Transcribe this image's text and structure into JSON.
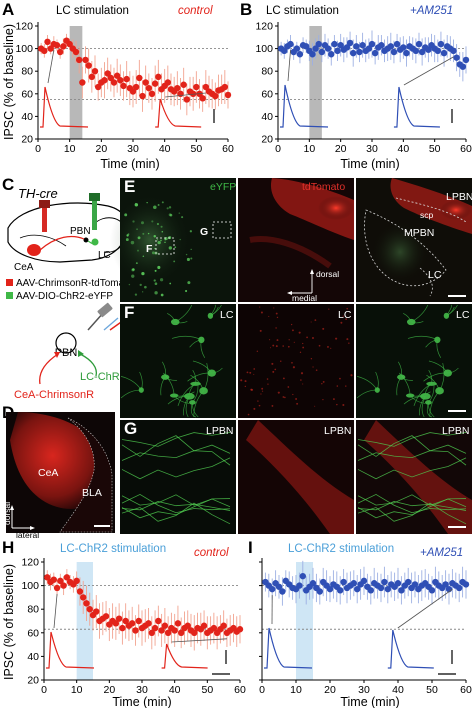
{
  "figure": {
    "colors": {
      "control": "#e2231a",
      "am251": "#2f4fb5",
      "stim_blue": "#4a9fd8",
      "stim_fill_blue": "#cfe6f5",
      "stim_fill_gray": "#b8b8b8",
      "eyfp": "#3fb847",
      "tdtomato": "#e0302a"
    },
    "panels": {
      "A": {
        "letter": "A",
        "stim_label": "LC stimulation",
        "condition_label": "control",
        "ylabel": "IPSC (% of baseline)",
        "xlabel": "Time (min)",
        "xticks": [
          "0",
          "10",
          "20",
          "30",
          "40",
          "50",
          "60"
        ],
        "yticks": [
          "20",
          "40",
          "60",
          "80",
          "100",
          "120"
        ]
      },
      "B": {
        "letter": "B",
        "stim_label": "LC stimulation",
        "condition_label": "+AM251",
        "xlabel": "Time (min)",
        "xticks": [
          "0",
          "10",
          "20",
          "30",
          "40",
          "50",
          "60"
        ],
        "yticks": [
          "20",
          "40",
          "60",
          "80",
          "100",
          "120"
        ]
      },
      "C": {
        "letter": "C",
        "genotype": "TH-cre",
        "legend": [
          "AAV-ChrimsonR-tdTomato",
          "AAV-DIO-ChR2-eYFP"
        ],
        "regions": [
          "CeA",
          "PBN",
          "LC"
        ],
        "circuit_center": "PBN",
        "left_input": "CeA-ChrimsonR",
        "right_input": "LC-ChR2"
      },
      "D": {
        "letter": "D",
        "labels": [
          "CeA",
          "BLA"
        ],
        "axis_dorsal": "dorsal",
        "axis_lateral": "lateral"
      },
      "E": {
        "letter": "E",
        "channel_1": "eYFP",
        "channel_2": "tdTomato",
        "inset_f": "F",
        "inset_g": "G",
        "merge_labels": [
          "LPBN",
          "scp",
          "MPBN",
          "LC"
        ],
        "axis_dorsal": "dorsal",
        "axis_medial": "medial"
      },
      "F": {
        "letter": "F",
        "region": "LC"
      },
      "G": {
        "letter": "G",
        "region": "LPBN"
      },
      "H": {
        "letter": "H",
        "stim_label": "LC-ChR2 stimulation",
        "condition_label": "control",
        "ylabel": "IPSC (% of baseline)",
        "xlabel": "Time (min)",
        "xticks": [
          "0",
          "10",
          "20",
          "30",
          "40",
          "50",
          "60"
        ],
        "yticks": [
          "20",
          "40",
          "60",
          "80",
          "100",
          "120"
        ]
      },
      "I": {
        "letter": "I",
        "stim_label": "LC-ChR2 stimulation",
        "condition_label": "+AM251",
        "xlabel": "Time (min)",
        "xticks": [
          "0",
          "10",
          "20",
          "30",
          "40",
          "50",
          "60"
        ],
        "yticks": [
          "20",
          "40",
          "60",
          "80",
          "100",
          "120"
        ]
      }
    }
  },
  "chart_data": [
    {
      "type": "scatter",
      "panel": "A",
      "xlabel": "Time (min)",
      "ylabel": "IPSC (% of baseline)",
      "xlim": [
        0,
        60
      ],
      "ylim": [
        20,
        120
      ],
      "stim_window": [
        10,
        14
      ],
      "reference_lines": [
        100,
        55
      ],
      "series": [
        {
          "x": [
            1,
            2,
            3,
            4,
            5,
            6,
            7,
            8,
            9,
            10,
            11,
            12,
            13,
            14,
            15,
            16,
            17,
            18,
            19,
            20,
            21,
            22,
            23,
            24,
            25,
            26,
            27,
            28,
            29,
            30,
            31,
            32,
            33,
            34,
            35,
            36,
            37,
            38,
            39,
            40,
            41,
            42,
            43,
            44,
            45,
            46,
            47,
            48,
            49,
            50,
            51,
            52,
            53,
            54,
            55,
            56,
            57,
            58,
            59,
            60
          ],
          "y": [
            100,
            98,
            106,
            100,
            104,
            103,
            97,
            102,
            107,
            104,
            100,
            97,
            90,
            70,
            90,
            85,
            75,
            80,
            66,
            70,
            72,
            78,
            74,
            70,
            76,
            72,
            67,
            73,
            65,
            62,
            66,
            74,
            58,
            70,
            65,
            60,
            69,
            75,
            64,
            67,
            70,
            64,
            62,
            65,
            60,
            68,
            55,
            62,
            60,
            66,
            60,
            56,
            66,
            62,
            60,
            58,
            63,
            64,
            66,
            59
          ],
          "err": [
            5,
            6,
            6,
            5,
            7,
            5,
            6,
            7,
            6,
            5,
            8,
            10,
            12,
            14,
            12,
            15,
            14,
            14,
            12,
            13,
            16,
            14,
            12,
            13,
            15,
            14,
            13,
            16,
            15,
            14,
            15,
            16,
            14,
            15,
            13,
            14,
            16,
            15,
            14,
            15,
            15,
            14,
            13,
            15,
            14,
            15,
            14,
            13,
            15,
            14,
            13,
            12,
            15,
            14,
            13,
            12,
            14,
            13,
            15,
            12
          ]
        }
      ]
    },
    {
      "type": "scatter",
      "panel": "B",
      "xlabel": "Time (min)",
      "xlim": [
        0,
        60
      ],
      "ylim": [
        20,
        120
      ],
      "stim_window": [
        10,
        14
      ],
      "reference_lines": [
        100,
        55
      ],
      "series": [
        {
          "x": [
            1,
            2,
            3,
            4,
            5,
            6,
            7,
            8,
            9,
            10,
            11,
            12,
            13,
            14,
            15,
            16,
            17,
            18,
            19,
            20,
            21,
            22,
            23,
            24,
            25,
            26,
            27,
            28,
            29,
            30,
            31,
            32,
            33,
            34,
            35,
            36,
            37,
            38,
            39,
            40,
            41,
            42,
            43,
            44,
            45,
            46,
            47,
            48,
            49,
            50,
            51,
            52,
            53,
            54,
            55,
            56,
            57,
            58,
            59,
            60
          ],
          "y": [
            100,
            98,
            102,
            104,
            97,
            100,
            95,
            103,
            102,
            98,
            95,
            100,
            104,
            97,
            103,
            100,
            95,
            104,
            98,
            103,
            99,
            101,
            105,
            96,
            102,
            97,
            103,
            98,
            100,
            104,
            96,
            101,
            103,
            98,
            100,
            102,
            97,
            104,
            99,
            101,
            96,
            102,
            100,
            98,
            104,
            97,
            101,
            99,
            103,
            100,
            98,
            104,
            96,
            102,
            100,
            98,
            92,
            86,
            84,
            90
          ],
          "err": [
            6,
            7,
            6,
            8,
            7,
            6,
            8,
            7,
            6,
            9,
            10,
            9,
            8,
            9,
            10,
            9,
            10,
            8,
            9,
            10,
            11,
            9,
            10,
            12,
            10,
            9,
            11,
            10,
            9,
            12,
            10,
            11,
            9,
            10,
            11,
            12,
            10,
            9,
            11,
            10,
            12,
            9,
            10,
            11,
            10,
            12,
            9,
            11,
            10,
            12,
            10,
            11,
            12,
            10,
            11,
            10,
            12,
            11,
            13,
            12
          ]
        }
      ]
    },
    {
      "type": "scatter",
      "panel": "H",
      "xlabel": "Time (min)",
      "ylabel": "IPSC (% of baseline)",
      "xlim": [
        0,
        60
      ],
      "ylim": [
        20,
        120
      ],
      "stim_window": [
        10,
        15
      ],
      "reference_lines": [
        100,
        63
      ],
      "series": [
        {
          "x": [
            1,
            2,
            3,
            4,
            5,
            6,
            7,
            8,
            9,
            10,
            11,
            12,
            13,
            14,
            15,
            16,
            17,
            18,
            19,
            20,
            21,
            22,
            23,
            24,
            25,
            26,
            27,
            28,
            29,
            30,
            31,
            32,
            33,
            34,
            35,
            36,
            37,
            38,
            39,
            40,
            41,
            42,
            43,
            44,
            45,
            46,
            47,
            48,
            49,
            50,
            51,
            52,
            53,
            54,
            55,
            56,
            57,
            58,
            59,
            60
          ],
          "y": [
            107,
            103,
            105,
            98,
            104,
            100,
            107,
            103,
            101,
            104,
            95,
            90,
            85,
            80,
            75,
            78,
            70,
            72,
            74,
            67,
            70,
            68,
            72,
            64,
            70,
            66,
            68,
            62,
            70,
            64,
            66,
            68,
            60,
            64,
            70,
            62,
            66,
            60,
            64,
            62,
            68,
            60,
            64,
            66,
            62,
            60,
            64,
            63,
            66,
            60,
            62,
            64,
            60,
            63,
            66,
            60,
            62,
            64,
            61,
            63
          ],
          "err": [
            6,
            7,
            6,
            7,
            6,
            8,
            7,
            6,
            7,
            8,
            12,
            14,
            15,
            14,
            13,
            14,
            15,
            14,
            13,
            14,
            15,
            14,
            13,
            14,
            15,
            13,
            14,
            13,
            14,
            15,
            14,
            13,
            14,
            15,
            13,
            14,
            15,
            14,
            13,
            14,
            15,
            13,
            14,
            13,
            14,
            15,
            13,
            14,
            13,
            14,
            12,
            13,
            14,
            12,
            13,
            12,
            13,
            12,
            13,
            12
          ]
        }
      ]
    },
    {
      "type": "scatter",
      "panel": "I",
      "xlabel": "Time (min)",
      "xlim": [
        0,
        60
      ],
      "ylim": [
        20,
        120
      ],
      "stim_window": [
        10,
        15
      ],
      "reference_lines": [
        100,
        63
      ],
      "series": [
        {
          "x": [
            1,
            2,
            3,
            4,
            5,
            6,
            7,
            8,
            9,
            10,
            11,
            12,
            13,
            14,
            15,
            16,
            17,
            18,
            19,
            20,
            21,
            22,
            23,
            24,
            25,
            26,
            27,
            28,
            29,
            30,
            31,
            32,
            33,
            34,
            35,
            36,
            37,
            38,
            39,
            40,
            41,
            42,
            43,
            44,
            45,
            46,
            47,
            48,
            49,
            50,
            51,
            52,
            53,
            54,
            55,
            56,
            57,
            58,
            59,
            60
          ],
          "y": [
            103,
            100,
            97,
            102,
            99,
            95,
            104,
            101,
            98,
            97,
            100,
            108,
            96,
            99,
            102,
            98,
            95,
            103,
            100,
            97,
            101,
            99,
            96,
            103,
            98,
            100,
            102,
            97,
            101,
            104,
            99,
            96,
            102,
            100,
            98,
            103,
            97,
            101,
            99,
            102,
            96,
            100,
            103,
            98,
            101,
            97,
            100,
            102,
            99,
            96,
            103,
            100,
            98,
            101,
            97,
            102,
            100,
            98,
            103,
            101
          ],
          "err": [
            8,
            10,
            9,
            11,
            10,
            12,
            9,
            11,
            10,
            12,
            11,
            13,
            12,
            11,
            13,
            12,
            11,
            12,
            13,
            11,
            12,
            13,
            12,
            11,
            13,
            12,
            11,
            12,
            13,
            12,
            11,
            12,
            13,
            11,
            12,
            13,
            12,
            11,
            12,
            13,
            12,
            11,
            12,
            13,
            11,
            12,
            13,
            12,
            11,
            12,
            13,
            12,
            11,
            12,
            13,
            12,
            11,
            12,
            13,
            12
          ]
        }
      ]
    }
  ]
}
